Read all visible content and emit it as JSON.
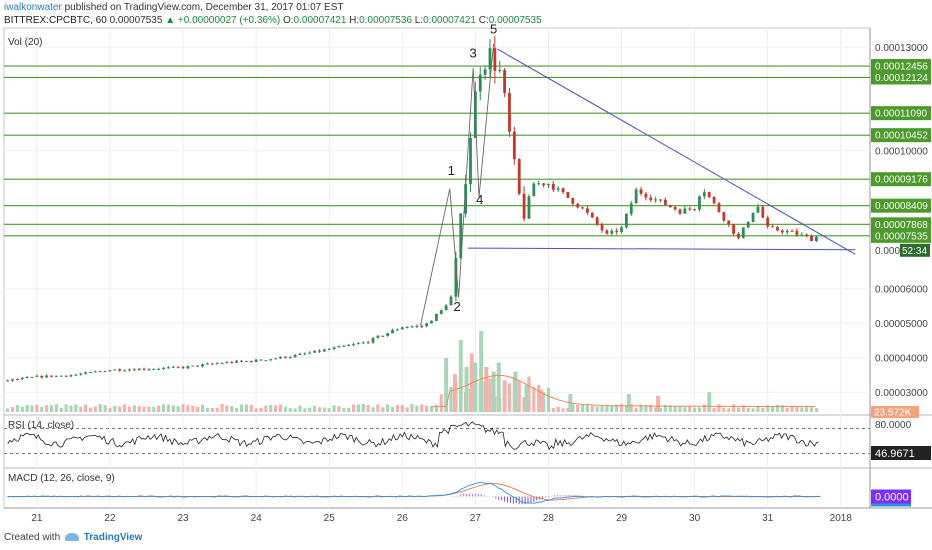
{
  "header": {
    "user": "iwalkonwater",
    "published_text": "published on TradingView.com, December 31, 2017 01:07 EST",
    "symbol": "BITTREX:CPCBTC, 60",
    "last": "0.00007535",
    "change": "▲ +0.00000027 (+0.36%)",
    "o_label": "O:",
    "o_value": "0.00007421",
    "h_label": "H:",
    "h_value": "0.00007536",
    "l_label": "L:",
    "l_value": "0.00007421",
    "c_label": "C:",
    "c_value": "0.00007535"
  },
  "footer": {
    "created_with": "Created with",
    "brand": "TradingView"
  },
  "colors": {
    "up": "#2e8b57",
    "down": "#c0392b",
    "hline": "#4c9a2a",
    "trend": "#4a4fc4",
    "rsi": "#222222",
    "macd": "#2f8fe0",
    "signal": "#e8794a",
    "volume_ma": "#f08a5a"
  },
  "chart_data": {
    "type": "candlestick",
    "title": "",
    "price_axis": {
      "ylim": [
        2.4e-05,
        0.000135
      ],
      "ticks": [
        "0.00013000",
        "0.00010000",
        "0.00006000",
        "0.00005000",
        "0.00004000",
        "0.00003000"
      ],
      "tick_values": [
        0.00013,
        0.0001,
        6e-05,
        5e-05,
        4e-05,
        3e-05
      ]
    },
    "x_axis": {
      "ticks": [
        "21",
        "22",
        "23",
        "24",
        "25",
        "26",
        "27",
        "28",
        "29",
        "30",
        "31",
        "2018"
      ],
      "tick_days": [
        21,
        22,
        23,
        24,
        25,
        26,
        27,
        28,
        29,
        30,
        31,
        32
      ],
      "xlim": [
        20.55,
        32.4
      ]
    },
    "horizontal_levels": [
      {
        "value": 0.00012456,
        "label": "0.00012456"
      },
      {
        "value": 0.00012124,
        "label": "0.00012124"
      },
      {
        "value": 0.0001109,
        "label": "0.00011090"
      },
      {
        "value": 0.00010452,
        "label": "0.00010452"
      },
      {
        "value": 9.176e-05,
        "label": "0.00009176"
      },
      {
        "value": 8.409e-05,
        "label": "0.00008409"
      },
      {
        "value": 7.868e-05,
        "label": "0.00007868"
      },
      {
        "value": 7.535e-05,
        "label": "0.00007535"
      }
    ],
    "trend_lines": [
      {
        "name": "descending",
        "from": [
          27.3,
          0.0001295
        ],
        "to": [
          32.2,
          7e-05
        ]
      },
      {
        "name": "support",
        "from": [
          26.9,
          7.18e-05
        ],
        "to": [
          32.2,
          7.13e-05
        ]
      }
    ],
    "wave_labels": [
      {
        "label": "1",
        "day": 26.67,
        "value": 9.3e-05
      },
      {
        "label": "2",
        "day": 26.75,
        "value": 5.35e-05
      },
      {
        "label": "3",
        "day": 26.97,
        "value": 0.000127
      },
      {
        "label": "4",
        "day": 27.06,
        "value": 8.45e-05
      },
      {
        "label": "5",
        "day": 27.25,
        "value": 0.000134
      }
    ],
    "wave_path": [
      [
        26.25,
        4.95e-05
      ],
      [
        26.65,
        8.9e-05
      ],
      [
        26.77,
        5.75e-05
      ],
      [
        26.97,
        0.000124
      ],
      [
        27.05,
        8.65e-05
      ],
      [
        27.25,
        0.000131
      ]
    ],
    "price_keypoints": [
      [
        20.55,
        3.33e-05
      ],
      [
        21.0,
        3.45e-05
      ],
      [
        21.5,
        3.5e-05
      ],
      [
        22.0,
        3.65e-05
      ],
      [
        22.5,
        3.68e-05
      ],
      [
        23.0,
        3.72e-05
      ],
      [
        23.5,
        3.85e-05
      ],
      [
        24.0,
        3.92e-05
      ],
      [
        24.5,
        4.05e-05
      ],
      [
        25.0,
        4.25e-05
      ],
      [
        25.5,
        4.45e-05
      ],
      [
        26.0,
        4.9e-05
      ],
      [
        26.3,
        4.92e-05
      ],
      [
        26.55,
        5.4e-05
      ],
      [
        26.68,
        5.8e-05
      ],
      [
        26.8,
        8e-05
      ],
      [
        26.95,
        0.000108
      ],
      [
        27.05,
        0.000124
      ],
      [
        27.2,
        0.000128
      ],
      [
        27.35,
        0.000122
      ],
      [
        27.5,
        9.95e-05
      ],
      [
        27.65,
        8.05e-05
      ],
      [
        27.8,
        9.05e-05
      ],
      [
        28.0,
        9.05e-05
      ],
      [
        28.2,
        8.75e-05
      ],
      [
        28.5,
        8.25e-05
      ],
      [
        28.8,
        7.55e-05
      ],
      [
        29.0,
        7.75e-05
      ],
      [
        29.2,
        8.85e-05
      ],
      [
        29.5,
        8.55e-05
      ],
      [
        29.8,
        8.25e-05
      ],
      [
        30.0,
        8.35e-05
      ],
      [
        30.1,
        8.95e-05
      ],
      [
        30.3,
        8.35e-05
      ],
      [
        30.6,
        7.45e-05
      ],
      [
        30.85,
        8.45e-05
      ],
      [
        31.0,
        7.75e-05
      ],
      [
        31.3,
        7.65e-05
      ],
      [
        31.6,
        7.45e-05
      ],
      [
        31.7,
        7.53e-05
      ]
    ],
    "volume": {
      "label": "Vol (20)",
      "last_label": "23.572K",
      "spike_days": [
        26.6,
        26.72,
        26.8,
        26.88,
        26.95,
        27.0,
        27.08,
        27.15,
        27.25,
        27.32,
        27.4,
        27.55,
        27.7,
        27.9,
        28.3,
        29.1,
        29.5,
        30.2
      ],
      "spike_values": [
        0.6,
        0.42,
        0.8,
        0.5,
        0.65,
        0.55,
        0.9,
        0.5,
        0.45,
        0.55,
        0.35,
        0.45,
        0.3,
        0.25,
        0.2,
        0.2,
        0.18,
        0.22
      ]
    },
    "rsi": {
      "label": "RSI (14, close)",
      "level_label": "80.0000",
      "value_label": "46.9671",
      "upper": 70,
      "lower": 30
    },
    "macd": {
      "label": "MACD (12, 26, close, 9)",
      "value_label": "0.0000"
    }
  }
}
